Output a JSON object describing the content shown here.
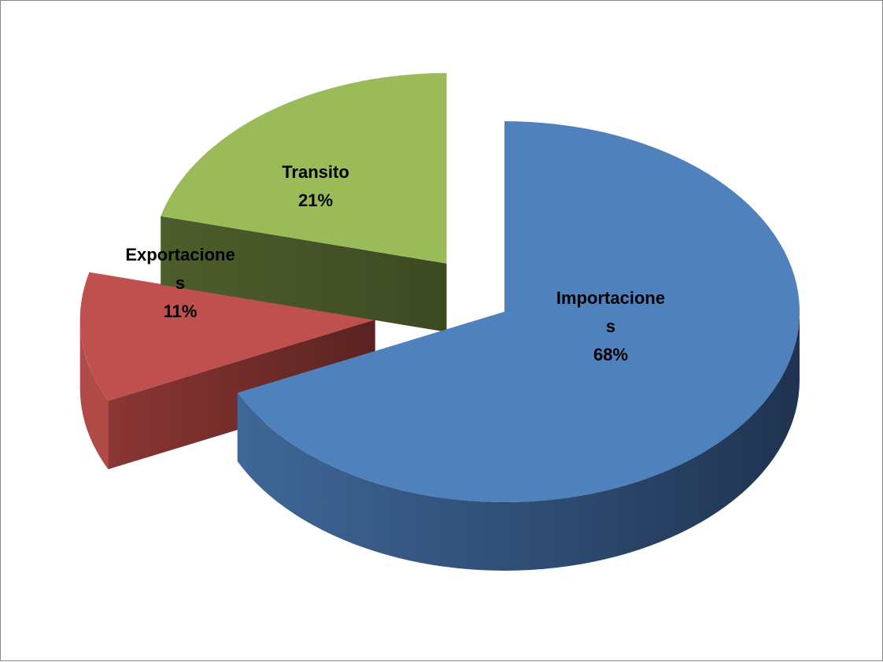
{
  "chart_data": {
    "type": "pie",
    "style": "3d-exploded",
    "categories": [
      "Importaciones",
      "Exportaciones",
      "Transito"
    ],
    "values": [
      68,
      11,
      21
    ],
    "unit": "%",
    "colors": [
      "#4f81bd",
      "#c0504d",
      "#9bbb59"
    ],
    "data_labels": [
      {
        "line1": "Importacione",
        "line2": "s",
        "pct": "68%"
      },
      {
        "line1": "Exportacione",
        "line2": "s",
        "pct": "11%"
      },
      {
        "line1": "Transito",
        "line2": "",
        "pct": "21%"
      }
    ],
    "title": "",
    "legend": "none"
  }
}
